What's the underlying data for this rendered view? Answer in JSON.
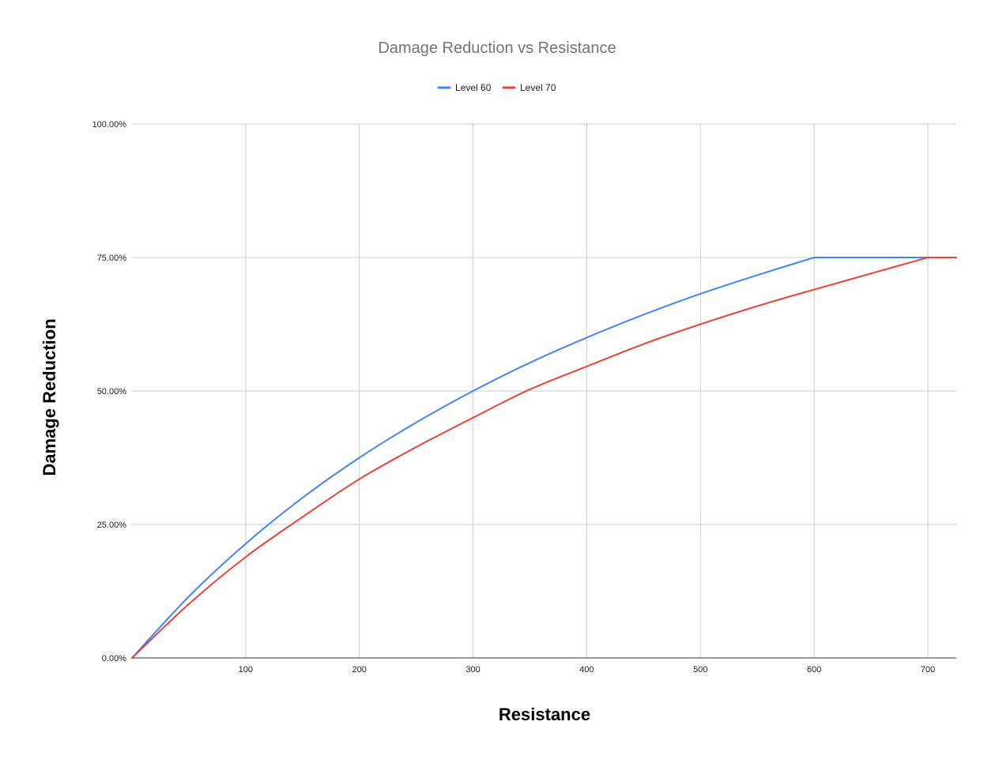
{
  "chart_data": {
    "type": "line",
    "title": "Damage Reduction vs Resistance",
    "xlabel": "Resistance",
    "ylabel": "Damage Reduction",
    "xlim": [
      0,
      725
    ],
    "ylim": [
      0,
      1
    ],
    "x_ticks": [
      "100",
      "200",
      "300",
      "400",
      "500",
      "600",
      "700"
    ],
    "y_ticks": [
      "0.00%",
      "25.00%",
      "50.00%",
      "75.00%",
      "100.00%"
    ],
    "y_tick_values": [
      0,
      0.25,
      0.5,
      0.75,
      1.0
    ],
    "x_tick_values": [
      100,
      200,
      300,
      400,
      500,
      600,
      700
    ],
    "grid": true,
    "legend_position": "top",
    "x": [
      0,
      50,
      100,
      150,
      200,
      250,
      300,
      350,
      400,
      450,
      500,
      550,
      600,
      650,
      700,
      725
    ],
    "series": [
      {
        "name": "Level 60",
        "color": "#4285f4",
        "values": [
          0,
          0.115,
          0.214,
          0.3,
          0.375,
          0.441,
          0.5,
          0.553,
          0.6,
          0.643,
          0.682,
          0.717,
          0.75,
          0.75,
          0.75,
          0.75
        ]
      },
      {
        "name": "Level 70",
        "color": "#ea4335",
        "values": [
          0,
          0.101,
          0.189,
          0.264,
          0.335,
          0.395,
          0.45,
          0.503,
          0.546,
          0.588,
          0.625,
          0.659,
          0.69,
          0.72,
          0.75,
          0.75
        ]
      }
    ]
  }
}
